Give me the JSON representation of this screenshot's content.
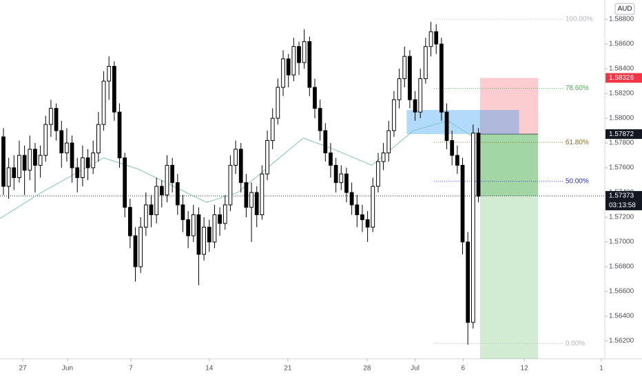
{
  "chart_data": {
    "type": "candlestick",
    "currency": "AUD",
    "xlim": [
      -0.65,
      113.95
    ],
    "ylim": [
      1.56056,
      1.58956
    ],
    "yticks": [
      {
        "value": 1.588,
        "label": "1.58800"
      },
      {
        "value": 1.586,
        "label": "1.58600"
      },
      {
        "value": 1.584,
        "label": "1.58400"
      },
      {
        "value": 1.582,
        "label": "1.58200"
      },
      {
        "value": 1.58,
        "label": "1.58000"
      },
      {
        "value": 1.578,
        "label": "1.57800"
      },
      {
        "value": 1.576,
        "label": "1.57600"
      },
      {
        "value": 1.574,
        "label": "1.57400"
      },
      {
        "value": 1.572,
        "label": "1.57200"
      },
      {
        "value": 1.57,
        "label": "1.57000"
      },
      {
        "value": 1.568,
        "label": "1.56800"
      },
      {
        "value": 1.566,
        "label": "1.56600"
      },
      {
        "value": 1.564,
        "label": "1.56400"
      },
      {
        "value": 1.562,
        "label": "1.56200"
      }
    ],
    "xticks": [
      {
        "value": 3.66,
        "label": "27"
      },
      {
        "value": 12.14,
        "label": "Jun"
      },
      {
        "value": 24.15,
        "label": "7"
      },
      {
        "value": 39.0,
        "label": "14"
      },
      {
        "value": 53.9,
        "label": "21"
      },
      {
        "value": 68.9,
        "label": "28"
      },
      {
        "value": 78.0,
        "label": "Jul"
      },
      {
        "value": 87.1,
        "label": "6"
      },
      {
        "value": 98.7,
        "label": "12"
      },
      {
        "value": 113.3,
        "label": "1"
      }
    ],
    "ohlc": [
      [
        1.5785,
        1.5792,
        1.5738,
        1.5745
      ],
      [
        1.5745,
        1.5768,
        1.5735,
        1.576
      ],
      [
        1.576,
        1.577,
        1.5742,
        1.5752
      ],
      [
        1.5752,
        1.5782,
        1.5748,
        1.577
      ],
      [
        1.577,
        1.5778,
        1.5738,
        1.5758
      ],
      [
        1.5758,
        1.5786,
        1.575,
        1.5775
      ],
      [
        1.5775,
        1.578,
        1.574,
        1.5762
      ],
      [
        1.5762,
        1.5778,
        1.5752,
        1.577
      ],
      [
        1.577,
        1.5802,
        1.5765,
        1.5795
      ],
      [
        1.5795,
        1.5815,
        1.5785,
        1.5808
      ],
      [
        1.5808,
        1.5812,
        1.5782,
        1.579
      ],
      [
        1.579,
        1.5798,
        1.576,
        1.5772
      ],
      [
        1.5772,
        1.5792,
        1.5765,
        1.578
      ],
      [
        1.578,
        1.5786,
        1.5748,
        1.576
      ],
      [
        1.576,
        1.5768,
        1.574,
        1.5752
      ],
      [
        1.5752,
        1.5778,
        1.5745,
        1.5768
      ],
      [
        1.5768,
        1.5775,
        1.575,
        1.576
      ],
      [
        1.576,
        1.5782,
        1.5755,
        1.5772
      ],
      [
        1.5772,
        1.5805,
        1.5765,
        1.5795
      ],
      [
        1.5795,
        1.5838,
        1.579,
        1.583
      ],
      [
        1.583,
        1.585,
        1.5815,
        1.5842
      ],
      [
        1.5842,
        1.5846,
        1.5798,
        1.5805
      ],
      [
        1.5805,
        1.5812,
        1.576,
        1.5768
      ],
      [
        1.5768,
        1.5772,
        1.572,
        1.5728
      ],
      [
        1.5728,
        1.5735,
        1.5695,
        1.5705
      ],
      [
        1.5705,
        1.5712,
        1.5668,
        1.568
      ],
      [
        1.568,
        1.572,
        1.5675,
        1.5712
      ],
      [
        1.5712,
        1.574,
        1.5705,
        1.573
      ],
      [
        1.573,
        1.5738,
        1.5712,
        1.5722
      ],
      [
        1.5722,
        1.5752,
        1.5715,
        1.5745
      ],
      [
        1.5745,
        1.575,
        1.5728,
        1.5738
      ],
      [
        1.5738,
        1.577,
        1.5732,
        1.5762
      ],
      [
        1.5762,
        1.5768,
        1.574,
        1.5748
      ],
      [
        1.5748,
        1.5755,
        1.5722,
        1.573
      ],
      [
        1.573,
        1.5738,
        1.5708,
        1.5718
      ],
      [
        1.5718,
        1.5725,
        1.5695,
        1.5705
      ],
      [
        1.5705,
        1.573,
        1.57,
        1.5722
      ],
      [
        1.5722,
        1.5728,
        1.5665,
        1.569
      ],
      [
        1.569,
        1.572,
        1.5685,
        1.5712
      ],
      [
        1.5712,
        1.5718,
        1.5692,
        1.57
      ],
      [
        1.57,
        1.573,
        1.5695,
        1.5722
      ],
      [
        1.5722,
        1.5728,
        1.5705,
        1.5715
      ],
      [
        1.5715,
        1.5738,
        1.571,
        1.573
      ],
      [
        1.573,
        1.577,
        1.5725,
        1.5762
      ],
      [
        1.5762,
        1.5782,
        1.5755,
        1.5775
      ],
      [
        1.5775,
        1.578,
        1.574,
        1.5748
      ],
      [
        1.5748,
        1.5755,
        1.572,
        1.5728
      ],
      [
        1.5728,
        1.5748,
        1.57,
        1.574
      ],
      [
        1.574,
        1.5745,
        1.5712,
        1.5722
      ],
      [
        1.5722,
        1.5762,
        1.5718,
        1.5755
      ],
      [
        1.5755,
        1.579,
        1.575,
        1.5782
      ],
      [
        1.5782,
        1.5808,
        1.5775,
        1.58
      ],
      [
        1.58,
        1.5832,
        1.5795,
        1.5825
      ],
      [
        1.5825,
        1.5855,
        1.5818,
        1.5848
      ],
      [
        1.5848,
        1.5852,
        1.5825,
        1.5835
      ],
      [
        1.5835,
        1.5865,
        1.583,
        1.5858
      ],
      [
        1.5858,
        1.5862,
        1.5835,
        1.5845
      ],
      [
        1.5845,
        1.5872,
        1.584,
        1.5862
      ],
      [
        1.5862,
        1.5866,
        1.5818,
        1.5825
      ],
      [
        1.5825,
        1.5832,
        1.58,
        1.5808
      ],
      [
        1.5808,
        1.5815,
        1.5782,
        1.579
      ],
      [
        1.579,
        1.5796,
        1.5765,
        1.5772
      ],
      [
        1.5772,
        1.578,
        1.5752,
        1.5762
      ],
      [
        1.5762,
        1.5768,
        1.574,
        1.5748
      ],
      [
        1.5748,
        1.5762,
        1.5742,
        1.5755
      ],
      [
        1.5755,
        1.576,
        1.5732,
        1.574
      ],
      [
        1.574,
        1.5748,
        1.5722,
        1.573
      ],
      [
        1.573,
        1.5738,
        1.5712,
        1.5722
      ],
      [
        1.5722,
        1.573,
        1.5708,
        1.5718
      ],
      [
        1.5718,
        1.5725,
        1.57,
        1.5712
      ],
      [
        1.5712,
        1.5752,
        1.5708,
        1.5745
      ],
      [
        1.5745,
        1.5772,
        1.574,
        1.5765
      ],
      [
        1.5765,
        1.578,
        1.5758,
        1.5772
      ],
      [
        1.5772,
        1.5798,
        1.5765,
        1.579
      ],
      [
        1.579,
        1.5822,
        1.5785,
        1.5815
      ],
      [
        1.5815,
        1.584,
        1.5808,
        1.5832
      ],
      [
        1.5832,
        1.5858,
        1.5825,
        1.585
      ],
      [
        1.585,
        1.5855,
        1.5808,
        1.5815
      ],
      [
        1.5815,
        1.5822,
        1.5798,
        1.5805
      ],
      [
        1.5805,
        1.584,
        1.58,
        1.5832
      ],
      [
        1.5832,
        1.5865,
        1.5828,
        1.5858
      ],
      [
        1.5858,
        1.5878,
        1.585,
        1.587
      ],
      [
        1.587,
        1.5876,
        1.5852,
        1.586
      ],
      [
        1.586,
        1.5865,
        1.5798,
        1.5805
      ],
      [
        1.5805,
        1.5812,
        1.5775,
        1.5782
      ],
      [
        1.5782,
        1.579,
        1.5762,
        1.577
      ],
      [
        1.577,
        1.5778,
        1.5755,
        1.5762
      ],
      [
        1.5762,
        1.5768,
        1.569,
        1.57
      ],
      [
        1.57,
        1.5708,
        1.5617,
        1.5635
      ],
      [
        1.5635,
        1.5795,
        1.563,
        1.5788
      ],
      [
        1.5788,
        1.5792,
        1.5732,
        1.5737
      ]
    ],
    "ma": {
      "color": "#7fc4c0",
      "x": [
        -0.65,
        7.2,
        19,
        25.5,
        38.5,
        44.4,
        56.8,
        62,
        69.8,
        77.7,
        84.2,
        89.4
      ],
      "values": [
        1.5719,
        1.574,
        1.5768,
        1.5759,
        1.5732,
        1.574,
        1.5784,
        1.5776,
        1.5762,
        1.579,
        1.5798,
        1.5784
      ]
    },
    "zone": {
      "x_start": 76.4,
      "x_end": 97.7,
      "top": 1.58067,
      "bottom": 1.57872,
      "color": "#2196f3"
    },
    "position": {
      "x_start": 90.3,
      "x_end": 101.3,
      "entry": 1.57872,
      "stop": 1.58326,
      "target": 1.56056
    },
    "fib": {
      "x_start": 81.6,
      "x_end": 106.1,
      "levels": [
        {
          "value": 1.588,
          "label": "100.00%",
          "color": "#b2b5be"
        },
        {
          "value": 1.58242,
          "label": "78.60%",
          "color": "#4caf50"
        },
        {
          "value": 1.57805,
          "label": "61.80%",
          "color": "#8a6d1a"
        },
        {
          "value": 1.5749,
          "label": "50.00%",
          "color": "#2a2ad4"
        },
        {
          "value": 1.5618,
          "label": "0.00%",
          "color": "#b2b5be"
        }
      ]
    },
    "price_labels": [
      {
        "value": 1.58326,
        "label": "1.58326",
        "color": "#f23645"
      },
      {
        "value": 1.57872,
        "label": "1.57872",
        "color": "#131722"
      },
      {
        "value": 1.57373,
        "label": "1.57373",
        "color": "#131722",
        "timer": "03:13:58"
      }
    ]
  }
}
